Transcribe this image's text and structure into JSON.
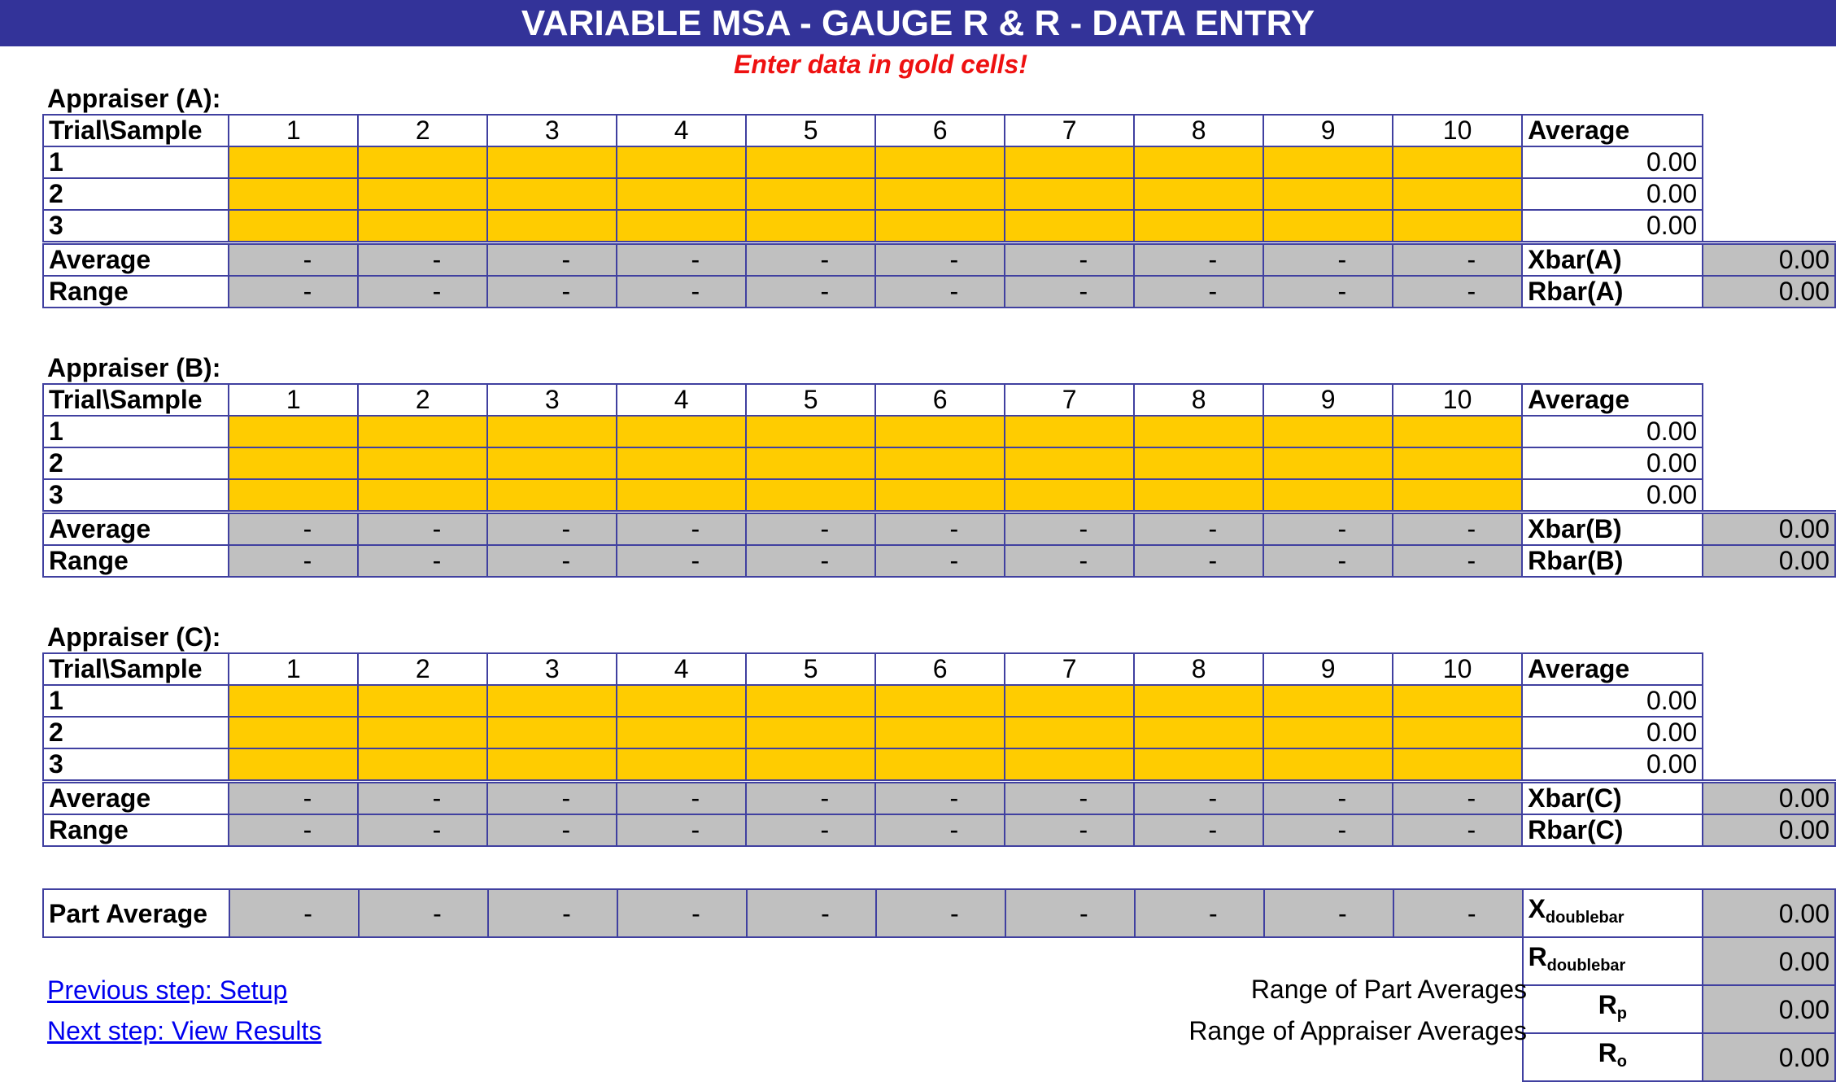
{
  "title": "VARIABLE MSA - GAUGE R & R - DATA ENTRY",
  "instruction": "Enter data in gold cells!",
  "colors": {
    "header": "#333399",
    "input_cell": "#ffcc00",
    "calc_cell": "#c0c0c0",
    "instruction": "#ee1111",
    "border": "#4040a0"
  },
  "header_label": "Trial\\Sample",
  "samples": [
    "1",
    "2",
    "3",
    "4",
    "5",
    "6",
    "7",
    "8",
    "9",
    "10"
  ],
  "average_col_label": "Average",
  "appraisers": [
    {
      "label": "Appraiser (A):",
      "trials": [
        {
          "label": "1",
          "average": "0.00"
        },
        {
          "label": "2",
          "average": "0.00"
        },
        {
          "label": "3",
          "average": "0.00"
        }
      ],
      "average_label": "Average",
      "average_values": [
        "-",
        "-",
        "-",
        "-",
        "-",
        "-",
        "-",
        "-",
        "-",
        "-"
      ],
      "xbar_label": "Xbar(A)",
      "xbar_value": "0.00",
      "range_label": "Range",
      "range_values": [
        "-",
        "-",
        "-",
        "-",
        "-",
        "-",
        "-",
        "-",
        "-",
        "-"
      ],
      "rbar_label": "Rbar(A)",
      "rbar_value": "0.00"
    },
    {
      "label": "Appraiser (B):",
      "trials": [
        {
          "label": "1",
          "average": "0.00"
        },
        {
          "label": "2",
          "average": "0.00"
        },
        {
          "label": "3",
          "average": "0.00"
        }
      ],
      "average_label": "Average",
      "average_values": [
        "-",
        "-",
        "-",
        "-",
        "-",
        "-",
        "-",
        "-",
        "-",
        "-"
      ],
      "xbar_label": "Xbar(B)",
      "xbar_value": "0.00",
      "range_label": "Range",
      "range_values": [
        "-",
        "-",
        "-",
        "-",
        "-",
        "-",
        "-",
        "-",
        "-",
        "-"
      ],
      "rbar_label": "Rbar(B)",
      "rbar_value": "0.00"
    },
    {
      "label": "Appraiser (C):",
      "trials": [
        {
          "label": "1",
          "average": "0.00"
        },
        {
          "label": "2",
          "average": "0.00"
        },
        {
          "label": "3",
          "average": "0.00"
        }
      ],
      "average_label": "Average",
      "average_values": [
        "-",
        "-",
        "-",
        "-",
        "-",
        "-",
        "-",
        "-",
        "-",
        "-"
      ],
      "xbar_label": "Xbar(C)",
      "xbar_value": "0.00",
      "range_label": "Range",
      "range_values": [
        "-",
        "-",
        "-",
        "-",
        "-",
        "-",
        "-",
        "-",
        "-",
        "-"
      ],
      "rbar_label": "Rbar(C)",
      "rbar_value": "0.00"
    }
  ],
  "part_average": {
    "label": "Part Average",
    "values": [
      "-",
      "-",
      "-",
      "-",
      "-",
      "-",
      "-",
      "-",
      "-",
      "-"
    ]
  },
  "summary": {
    "xdoublebar": {
      "main": "X",
      "sub": "doublebar",
      "value": "0.00"
    },
    "rdoublebar": {
      "main": "R",
      "sub": "doublebar",
      "value": "0.00"
    },
    "rp": {
      "desc": "Range of Part Averages",
      "main": "R",
      "sub": "p",
      "value": "0.00"
    },
    "ro": {
      "desc": "Range of Appraiser Averages",
      "main": "R",
      "sub": "o",
      "value": "0.00"
    }
  },
  "links": {
    "previous": "Previous step: Setup",
    "next": "Next step: View Results"
  }
}
